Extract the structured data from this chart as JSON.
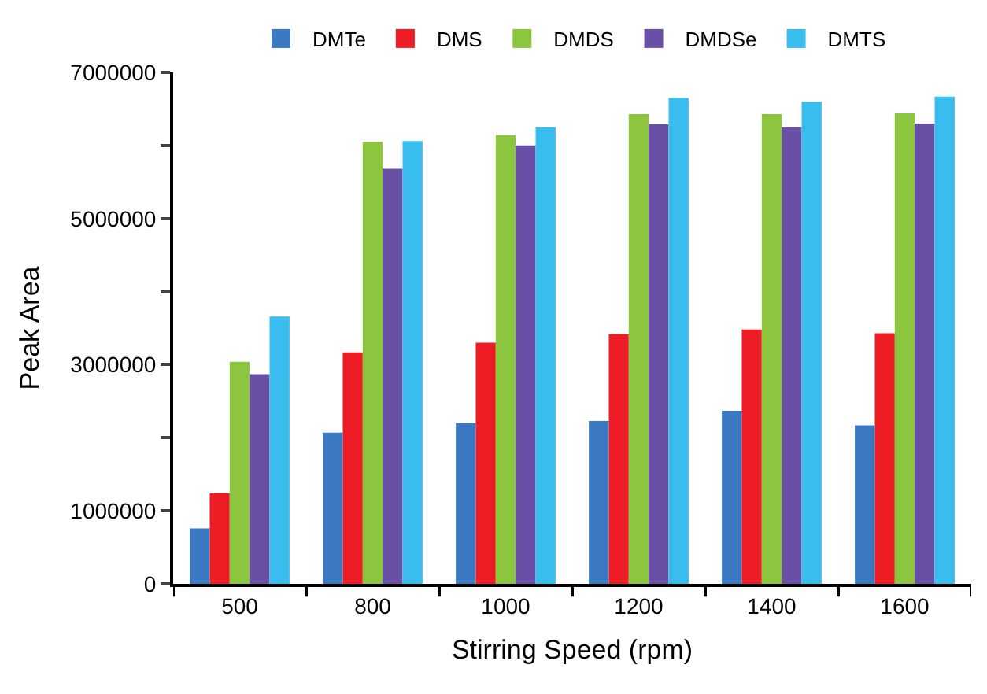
{
  "chart_data": {
    "type": "bar",
    "xlabel": "Stirring Speed (rpm)",
    "ylabel": "Peak Area",
    "categories": [
      "500",
      "800",
      "1000",
      "1200",
      "1400",
      "1600"
    ],
    "series": [
      {
        "name": "DMTe",
        "color": "#3a78c2",
        "values": [
          760000,
          2070000,
          2200000,
          2230000,
          2370000,
          2170000
        ]
      },
      {
        "name": "DMS",
        "color": "#ee1c25",
        "values": [
          1240000,
          3170000,
          3300000,
          3420000,
          3480000,
          3430000
        ]
      },
      {
        "name": "DMDS",
        "color": "#8cc63f",
        "values": [
          3040000,
          6050000,
          6140000,
          6430000,
          6430000,
          6440000
        ]
      },
      {
        "name": "DMDSe",
        "color": "#6a4fa6",
        "values": [
          2870000,
          5680000,
          6000000,
          6290000,
          6250000,
          6300000
        ]
      },
      {
        "name": "DMTS",
        "color": "#38bdee",
        "values": [
          3660000,
          6060000,
          6250000,
          6650000,
          6600000,
          6670000
        ]
      }
    ],
    "ylim": [
      0,
      7000000
    ],
    "yticks": [
      0,
      1000000,
      {
        "value": 2000000,
        "label": null
      },
      3000000,
      {
        "value": 4000000,
        "label": null
      },
      5000000,
      {
        "value": 6000000,
        "label": null
      },
      7000000
    ],
    "legend": "top"
  }
}
